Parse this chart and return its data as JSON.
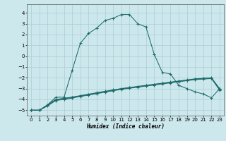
{
  "xlabel": "Humidex (Indice chaleur)",
  "xlim": [
    -0.5,
    23.5
  ],
  "ylim": [
    -5.5,
    4.8
  ],
  "xticks": [
    0,
    1,
    2,
    3,
    4,
    5,
    6,
    7,
    8,
    9,
    10,
    11,
    12,
    13,
    14,
    15,
    16,
    17,
    18,
    19,
    20,
    21,
    22,
    23
  ],
  "yticks": [
    -5,
    -4,
    -3,
    -2,
    -1,
    0,
    1,
    2,
    3,
    4
  ],
  "bg_color": "#cce8ed",
  "grid_color": "#aacdd4",
  "line_color": "#1e6b6b",
  "line1_x": [
    0,
    1,
    2,
    3,
    4,
    5,
    6,
    7,
    8,
    9,
    10,
    11,
    12,
    13,
    14,
    15,
    16,
    17,
    18,
    19,
    20,
    21,
    22,
    23
  ],
  "line1_y": [
    -5.0,
    -5.0,
    -4.5,
    -3.8,
    -3.8,
    -1.3,
    1.2,
    2.1,
    2.6,
    3.3,
    3.5,
    3.85,
    3.85,
    3.0,
    2.7,
    0.2,
    -1.5,
    -1.65,
    -2.7,
    -3.0,
    -3.3,
    -3.5,
    -3.85,
    -3.0
  ],
  "line2_x": [
    0,
    1,
    2,
    3,
    4,
    5,
    6,
    7,
    8,
    9,
    10,
    11,
    12,
    13,
    14,
    15,
    16,
    17,
    18,
    19,
    20,
    21,
    22,
    23
  ],
  "line2_y": [
    -5.0,
    -5.0,
    -4.5,
    -4.0,
    -3.9,
    -3.78,
    -3.65,
    -3.52,
    -3.38,
    -3.25,
    -3.12,
    -3.0,
    -2.9,
    -2.8,
    -2.7,
    -2.6,
    -2.5,
    -2.4,
    -2.3,
    -2.2,
    -2.1,
    -2.05,
    -2.0,
    -3.0
  ],
  "line3_x": [
    0,
    1,
    2,
    3,
    4,
    5,
    6,
    7,
    8,
    9,
    10,
    11,
    12,
    13,
    14,
    15,
    16,
    17,
    18,
    19,
    20,
    21,
    22,
    23
  ],
  "line3_y": [
    -5.0,
    -5.0,
    -4.55,
    -4.05,
    -3.95,
    -3.82,
    -3.68,
    -3.55,
    -3.42,
    -3.28,
    -3.15,
    -3.02,
    -2.92,
    -2.82,
    -2.72,
    -2.62,
    -2.52,
    -2.42,
    -2.32,
    -2.22,
    -2.12,
    -2.07,
    -2.02,
    -3.08
  ],
  "line4_x": [
    0,
    1,
    2,
    3,
    4,
    5,
    6,
    7,
    8,
    9,
    10,
    11,
    12,
    13,
    14,
    15,
    16,
    17,
    18,
    19,
    20,
    21,
    22,
    23
  ],
  "line4_y": [
    -5.0,
    -5.0,
    -4.6,
    -4.1,
    -4.0,
    -3.87,
    -3.73,
    -3.6,
    -3.47,
    -3.33,
    -3.2,
    -3.07,
    -2.97,
    -2.87,
    -2.77,
    -2.67,
    -2.57,
    -2.47,
    -2.37,
    -2.27,
    -2.17,
    -2.12,
    -2.07,
    -3.15
  ]
}
